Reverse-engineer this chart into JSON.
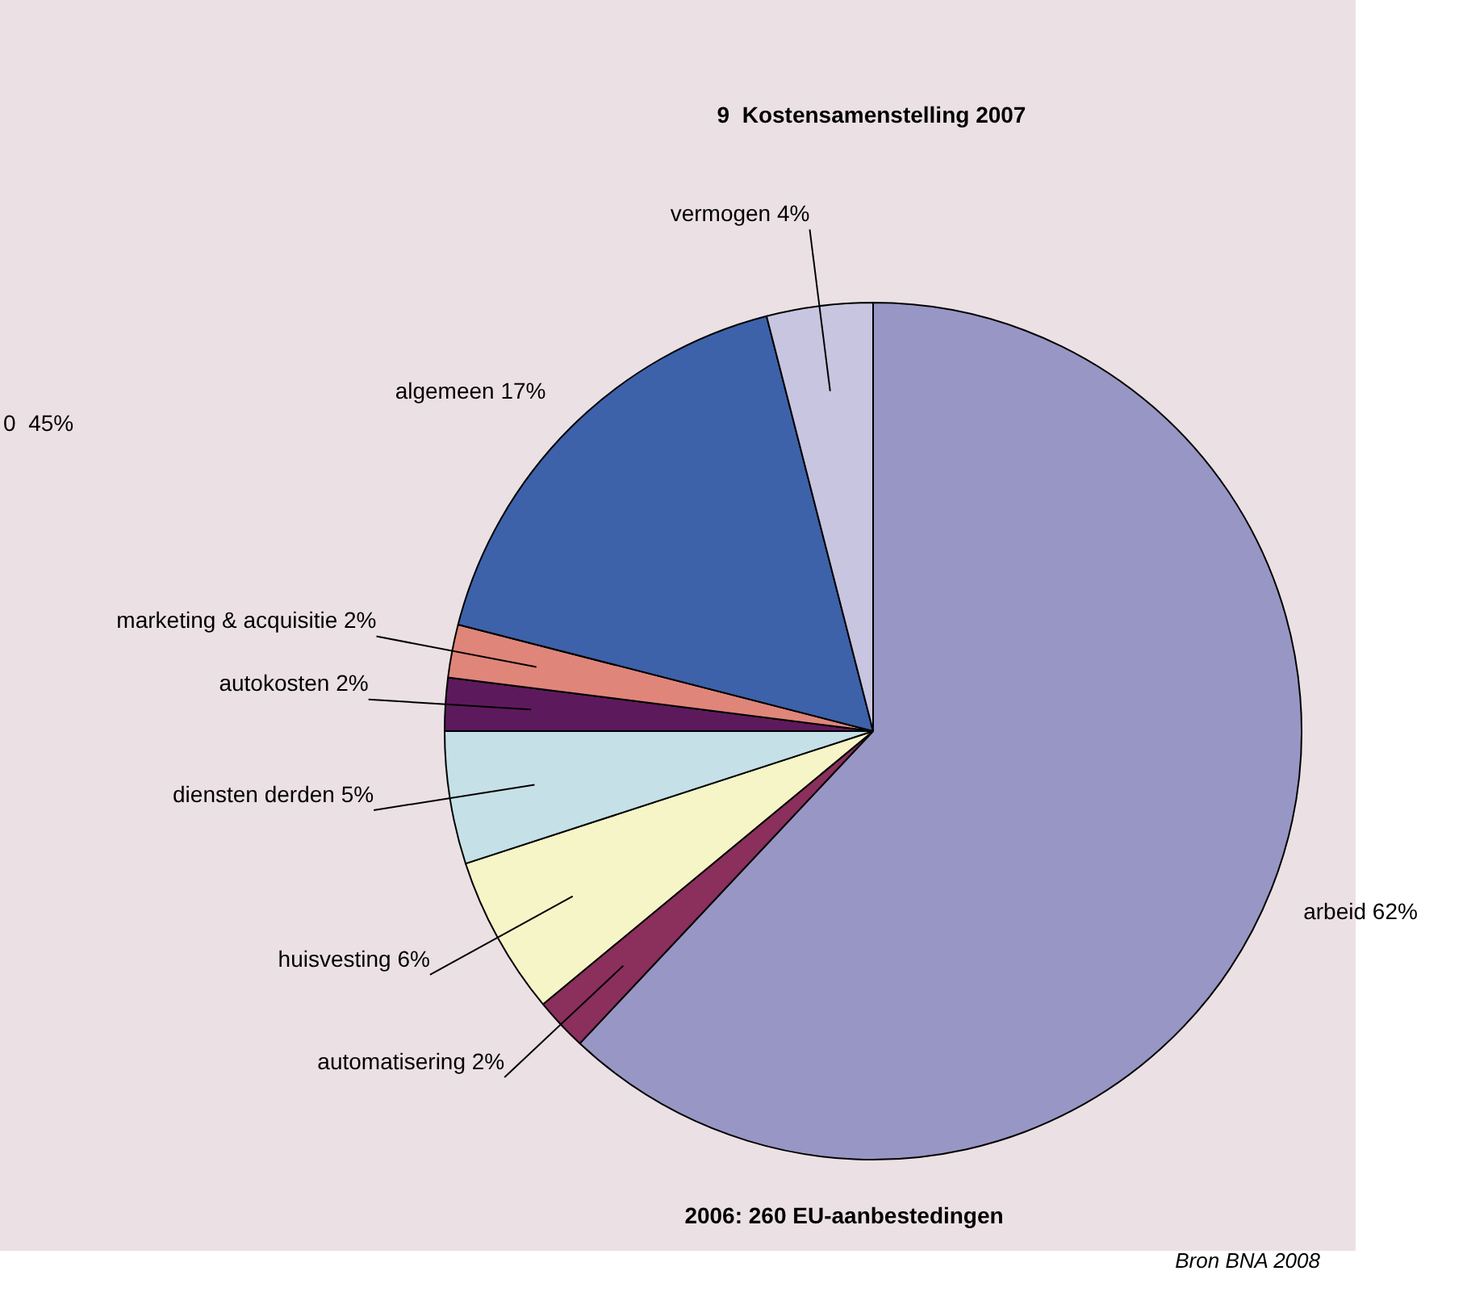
{
  "chart_data": {
    "type": "pie",
    "title": "9  Kostensamenstelling 2007",
    "categories": [
      "arbeid",
      "automatisering",
      "huisvesting",
      "diensten derden",
      "autokosten",
      "marketing & acquisitie",
      "algemeen",
      "vermogen"
    ],
    "values": [
      62,
      2,
      6,
      5,
      2,
      2,
      17,
      4
    ],
    "value_labels": [
      "62%",
      "2%",
      "6%",
      "5%",
      "2%",
      "2%",
      "17%",
      "4%"
    ],
    "colors": [
      "#9896c4",
      "#8b2f5c",
      "#f5f5c8",
      "#c5e0e6",
      "#5c1a5c",
      "#e0857a",
      "#3d62aa",
      "#c8c5e0"
    ],
    "legend": false,
    "annotations": [
      "2006: 260 EU-aanbestedingen",
      "Bron BNA 2008",
      "0  45%"
    ]
  }
}
